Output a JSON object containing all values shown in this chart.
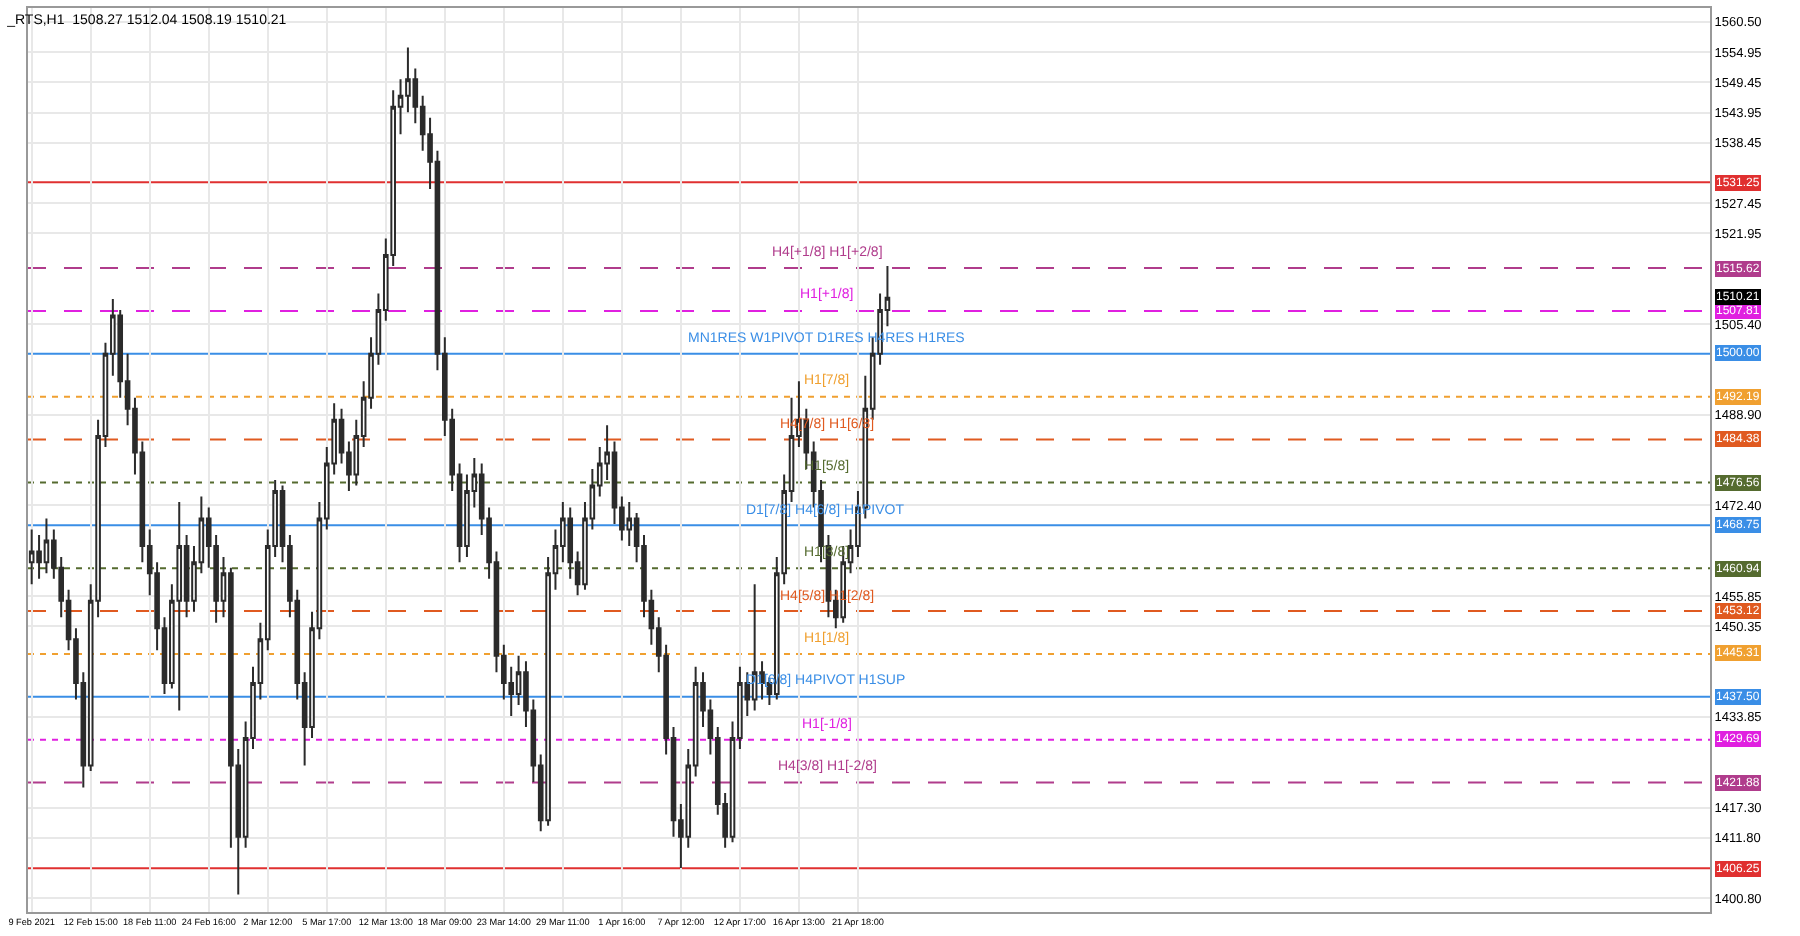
{
  "chart_data": {
    "type": "candlestick",
    "title": "_RTS,H1  1508.27 1512.04 1508.19 1510.21",
    "categories": [
      "9 Feb 2021",
      null,
      null,
      null,
      null,
      null,
      null,
      null,
      "12 Feb 15:00",
      null,
      null,
      null,
      null,
      null,
      null,
      null,
      "18 Feb 11:00",
      null,
      null,
      null,
      null,
      null,
      null,
      null,
      "24 Feb 16:00",
      null,
      null,
      null,
      null,
      null,
      null,
      null,
      "2 Mar 12:00",
      null,
      null,
      null,
      null,
      null,
      null,
      null,
      "5 Mar 17:00",
      null,
      null,
      null,
      null,
      null,
      null,
      null,
      "12 Mar 13:00",
      null,
      null,
      null,
      null,
      null,
      null,
      null,
      "18 Mar 09:00",
      null,
      null,
      null,
      null,
      null,
      null,
      null,
      "23 Mar 14:00",
      null,
      null,
      null,
      null,
      null,
      null,
      null,
      "29 Mar 11:00",
      null,
      null,
      null,
      null,
      null,
      null,
      null,
      "1 Apr 16:00",
      null,
      null,
      null,
      null,
      null,
      null,
      null,
      "7 Apr 12:00",
      null,
      null,
      null,
      null,
      null,
      null,
      null,
      "12 Apr 17:00",
      null,
      null,
      null,
      null,
      null,
      null,
      null,
      "16 Apr 13:00",
      null,
      null,
      null,
      null,
      null,
      null,
      null,
      "21 Apr 18:00",
      null,
      null,
      null,
      null,
      null,
      null,
      null,
      null,
      null,
      null,
      null,
      null,
      null,
      null,
      null,
      null,
      null,
      null,
      null,
      null,
      null,
      null,
      null,
      null,
      null,
      null,
      null,
      null,
      null,
      null,
      null,
      null,
      null,
      null,
      null,
      null,
      null,
      null,
      null,
      null,
      null,
      null,
      null,
      null,
      null,
      null,
      null,
      null,
      null,
      null,
      null,
      null,
      null,
      null,
      null,
      null,
      null,
      null,
      null,
      null,
      null,
      null,
      null,
      null,
      null,
      null,
      null,
      null,
      null,
      null,
      null,
      null,
      null,
      null,
      null,
      null,
      null,
      null,
      null,
      null,
      null,
      null,
      null,
      null,
      null,
      null,
      null,
      null,
      null,
      null,
      null,
      null,
      null,
      null,
      null,
      null,
      null,
      null,
      null,
      null,
      null,
      null,
      null,
      null,
      null,
      null,
      null,
      null,
      null,
      null,
      null,
      null,
      null,
      null,
      null
    ],
    "series": [
      {
        "color": "#2b2b2b",
        "ohlc": [
          [
            1462,
            1468,
            1458,
            1464
          ],
          [
            1464,
            1467,
            1459,
            1462
          ],
          [
            1462,
            1470,
            1460,
            1466
          ],
          [
            1466,
            1468,
            1459,
            1461
          ],
          [
            1461,
            1463,
            1452,
            1455
          ],
          [
            1455,
            1457,
            1446,
            1448
          ],
          [
            1448,
            1450,
            1437,
            1440
          ],
          [
            1440,
            1442,
            1421,
            1425
          ],
          [
            1425,
            1458,
            1424,
            1455
          ],
          [
            1455,
            1488,
            1452,
            1485
          ],
          [
            1485,
            1502,
            1483,
            1500
          ],
          [
            1500,
            1510,
            1496,
            1507
          ],
          [
            1507,
            1508,
            1492,
            1495
          ],
          [
            1495,
            1500,
            1487,
            1490
          ],
          [
            1490,
            1492,
            1478,
            1482
          ],
          [
            1482,
            1484,
            1462,
            1465
          ],
          [
            1465,
            1468,
            1456,
            1460
          ],
          [
            1460,
            1462,
            1446,
            1450
          ],
          [
            1450,
            1452,
            1438,
            1440
          ],
          [
            1440,
            1458,
            1439,
            1455
          ],
          [
            1455,
            1473,
            1435,
            1465
          ],
          [
            1465,
            1467,
            1452,
            1455
          ],
          [
            1455,
            1465,
            1453,
            1462
          ],
          [
            1462,
            1474,
            1460,
            1470
          ],
          [
            1470,
            1472,
            1461,
            1465
          ],
          [
            1465,
            1467,
            1451,
            1455
          ],
          [
            1455,
            1463,
            1452,
            1460
          ],
          [
            1460,
            1461,
            1410,
            1425
          ],
          [
            1425,
            1428,
            1401.5,
            1412
          ],
          [
            1412,
            1433,
            1410,
            1430
          ],
          [
            1430,
            1443,
            1428,
            1440
          ],
          [
            1440,
            1451,
            1437,
            1448
          ],
          [
            1448,
            1468,
            1446,
            1465
          ],
          [
            1465,
            1477,
            1463,
            1475
          ],
          [
            1475,
            1476,
            1462,
            1465
          ],
          [
            1465,
            1467,
            1452,
            1455
          ],
          [
            1455,
            1457,
            1437,
            1440
          ],
          [
            1440,
            1442,
            1425,
            1432
          ],
          [
            1432,
            1453,
            1430,
            1450
          ],
          [
            1450,
            1473,
            1448,
            1470
          ],
          [
            1470,
            1483,
            1468,
            1480
          ],
          [
            1480,
            1491,
            1478,
            1488
          ],
          [
            1488,
            1490,
            1480,
            1482
          ],
          [
            1482,
            1484,
            1475,
            1478
          ],
          [
            1478,
            1488,
            1476,
            1485
          ],
          [
            1485,
            1495,
            1483,
            1492
          ],
          [
            1492,
            1503,
            1490,
            1500
          ],
          [
            1500,
            1511,
            1498,
            1508
          ],
          [
            1508,
            1521,
            1506,
            1518
          ],
          [
            1518,
            1548,
            1516,
            1545
          ],
          [
            1545,
            1550,
            1540,
            1547
          ],
          [
            1547,
            1555.8,
            1544,
            1550
          ],
          [
            1550,
            1552,
            1542,
            1545
          ],
          [
            1545,
            1547,
            1537,
            1540
          ],
          [
            1540,
            1543,
            1530,
            1535
          ],
          [
            1535,
            1537,
            1497,
            1500
          ],
          [
            1500,
            1503,
            1485,
            1488
          ],
          [
            1488,
            1490,
            1475,
            1478
          ],
          [
            1478,
            1480,
            1462,
            1465
          ],
          [
            1465,
            1478,
            1463,
            1475
          ],
          [
            1475,
            1481,
            1472,
            1478
          ],
          [
            1478,
            1480,
            1467,
            1470
          ],
          [
            1470,
            1472,
            1459,
            1462
          ],
          [
            1462,
            1464,
            1442,
            1445
          ],
          [
            1445,
            1447,
            1437,
            1440
          ],
          [
            1440,
            1443,
            1434,
            1438
          ],
          [
            1438,
            1445,
            1436,
            1442
          ],
          [
            1442,
            1444,
            1432,
            1435
          ],
          [
            1435,
            1437,
            1422,
            1425
          ],
          [
            1425,
            1427,
            1413,
            1415
          ],
          [
            1415,
            1463,
            1414,
            1460
          ],
          [
            1460,
            1468,
            1457,
            1465
          ],
          [
            1465,
            1473,
            1462,
            1470
          ],
          [
            1470,
            1472,
            1459,
            1462
          ],
          [
            1462,
            1464,
            1456,
            1458
          ],
          [
            1458,
            1473,
            1457,
            1470
          ],
          [
            1470,
            1479,
            1468,
            1476
          ],
          [
            1476,
            1483,
            1474,
            1480
          ],
          [
            1480,
            1487,
            1477,
            1482
          ],
          [
            1482,
            1484,
            1469,
            1472
          ],
          [
            1472,
            1474,
            1466,
            1468
          ],
          [
            1468,
            1473,
            1465,
            1470
          ],
          [
            1470,
            1471,
            1462,
            1465
          ],
          [
            1465,
            1467,
            1452,
            1455
          ],
          [
            1455,
            1457,
            1447,
            1450
          ],
          [
            1450,
            1452,
            1442,
            1445
          ],
          [
            1445,
            1447,
            1427,
            1430
          ],
          [
            1430,
            1432,
            1412,
            1415
          ],
          [
            1415,
            1418,
            1406.3,
            1412
          ],
          [
            1412,
            1428,
            1410,
            1425
          ],
          [
            1425,
            1443,
            1423,
            1440
          ],
          [
            1440,
            1442,
            1432,
            1435
          ],
          [
            1435,
            1437,
            1427,
            1430
          ],
          [
            1430,
            1432,
            1416,
            1418
          ],
          [
            1418,
            1420,
            1410,
            1412
          ],
          [
            1412,
            1433,
            1411,
            1430
          ],
          [
            1430,
            1443,
            1428,
            1440
          ],
          [
            1440,
            1442,
            1434,
            1437
          ],
          [
            1437,
            1458,
            1435,
            1442
          ],
          [
            1442,
            1444,
            1437,
            1440
          ],
          [
            1440,
            1441,
            1436,
            1438
          ],
          [
            1438,
            1463,
            1437,
            1460
          ],
          [
            1460,
            1478,
            1458,
            1475
          ],
          [
            1475,
            1492,
            1473,
            1485
          ],
          [
            1485,
            1495,
            1483,
            1488
          ],
          [
            1488,
            1490,
            1479,
            1482
          ],
          [
            1482,
            1484,
            1472,
            1475
          ],
          [
            1475,
            1477,
            1462,
            1465
          ],
          [
            1465,
            1467,
            1452,
            1455
          ],
          [
            1455,
            1457,
            1450,
            1452
          ],
          [
            1452,
            1465,
            1451,
            1462
          ],
          [
            1462,
            1468,
            1460,
            1465
          ],
          [
            1465,
            1475,
            1463,
            1472
          ],
          [
            1472,
            1496,
            1470,
            1490
          ],
          [
            1490,
            1503,
            1488,
            1500
          ],
          [
            1500,
            1511,
            1498,
            1508
          ],
          [
            1508,
            1516,
            1505,
            1510.21
          ],
          null,
          null,
          null,
          null,
          null,
          null,
          null,
          null,
          null,
          null,
          null,
          null,
          null,
          null,
          null,
          null,
          null,
          null,
          null,
          null,
          null,
          null,
          null,
          null,
          null,
          null,
          null,
          null,
          null,
          null,
          null,
          null,
          null,
          null,
          null,
          null,
          null,
          null,
          null,
          null,
          null,
          null,
          null,
          null,
          null,
          null,
          null,
          null,
          null,
          null,
          null,
          null,
          null,
          null,
          null,
          null,
          null,
          null,
          null,
          null,
          null,
          null,
          null,
          null,
          null,
          null,
          null,
          null,
          null,
          null,
          null,
          null,
          null,
          null,
          null,
          null,
          null,
          null,
          null,
          null,
          null,
          null,
          null,
          null,
          null,
          null,
          null,
          null,
          null,
          null,
          null,
          null,
          null,
          null,
          null,
          null,
          null,
          null,
          null,
          null,
          null,
          null,
          null,
          null,
          null,
          null,
          null,
          null,
          null,
          null,
          null
        ]
      }
    ],
    "ylim": [
      1398.3,
      1563.0
    ],
    "yticks": [
      {
        "value": 1560.5,
        "label": "1560.50"
      },
      {
        "value": 1554.95,
        "label": "1554.95"
      },
      {
        "value": 1549.45,
        "label": "1549.45"
      },
      {
        "value": 1543.95,
        "label": "1543.95"
      },
      {
        "value": 1538.45,
        "label": "1538.45"
      },
      {
        "value": 1527.45,
        "label": "1527.45"
      },
      {
        "value": 1521.95,
        "label": "1521.95"
      },
      {
        "value": 1505.4,
        "label": "1505.40"
      },
      {
        "value": 1488.9,
        "label": "1488.90"
      },
      {
        "value": 1472.4,
        "label": "1472.40"
      },
      {
        "value": 1455.85,
        "label": "1455.85"
      },
      {
        "value": 1450.35,
        "label": "1450.35"
      },
      {
        "value": 1433.85,
        "label": "1433.85"
      },
      {
        "value": 1417.3,
        "label": "1417.30"
      },
      {
        "value": 1411.8,
        "label": "1411.80"
      },
      {
        "value": 1400.8,
        "label": "1400.80"
      }
    ],
    "grid": true,
    "ref_lines": [
      {
        "axis": "y",
        "value": 1531.25,
        "label": "1531.25",
        "color": "#e03030",
        "line_style": "solid"
      },
      {
        "axis": "y",
        "value": 1515.62,
        "label": "1515.62",
        "color": "#b03c8c",
        "line_style": "dashed"
      },
      {
        "axis": "y",
        "value": 1507.81,
        "label": "1507.81",
        "color": "#e020e0",
        "line_style": "dashed"
      },
      {
        "axis": "y",
        "value": 1500.0,
        "label": "1500.00",
        "color": "#3a8ee6",
        "line_style": "solid"
      },
      {
        "axis": "y",
        "value": 1492.19,
        "label": "1492.19",
        "color": "#f0a030",
        "line_style": "dotted"
      },
      {
        "axis": "y",
        "value": 1484.38,
        "label": "1484.38",
        "color": "#e05a20",
        "line_style": "dashed"
      },
      {
        "axis": "y",
        "value": 1476.56,
        "label": "1476.56",
        "color": "#556b2f",
        "line_style": "dotted"
      },
      {
        "axis": "y",
        "value": 1468.75,
        "label": "1468.75",
        "color": "#3a8ee6",
        "line_style": "solid"
      },
      {
        "axis": "y",
        "value": 1460.94,
        "label": "1460.94",
        "color": "#556b2f",
        "line_style": "dotted"
      },
      {
        "axis": "y",
        "value": 1453.12,
        "label": "1453.12",
        "color": "#e05a20",
        "line_style": "dashed"
      },
      {
        "axis": "y",
        "value": 1445.31,
        "label": "1445.31",
        "color": "#f0a030",
        "line_style": "dotted"
      },
      {
        "axis": "y",
        "value": 1437.5,
        "label": "1437.50",
        "color": "#3a8ee6",
        "line_style": "solid"
      },
      {
        "axis": "y",
        "value": 1429.69,
        "label": "1429.69",
        "color": "#e020e0",
        "line_style": "dotted"
      },
      {
        "axis": "y",
        "value": 1421.88,
        "label": "1421.88",
        "color": "#b03c8c",
        "line_style": "dashed"
      },
      {
        "axis": "y",
        "value": 1406.25,
        "label": "1406.25",
        "color": "#e03030",
        "line_style": "solid"
      }
    ],
    "annotations": [
      {
        "text": "1510.21",
        "y": 1510.21
      },
      {
        "text": "H4[+1/8] H1[+2/8]",
        "y": 1515.62
      },
      {
        "text": "H1[+1/8]",
        "y": 1507.81
      },
      {
        "text": "MN1RES W1PIVOT D1RES H4RES H1RES",
        "y": 1500.0
      },
      {
        "text": "H1[7/8]",
        "y": 1492.19
      },
      {
        "text": "H4[7/8] H1[6/8]",
        "y": 1484.38
      },
      {
        "text": "H1[5/8]",
        "y": 1476.56
      },
      {
        "text": "D1[7/8] H4[6/8] H1PIVOT",
        "y": 1468.75
      },
      {
        "text": "H1[3/8]",
        "y": 1460.94
      },
      {
        "text": "H4[5/8] H1[2/8]",
        "y": 1453.12
      },
      {
        "text": "H1[1/8]",
        "y": 1445.31
      },
      {
        "text": "D1[6/8] H4PIVOT H1SUP",
        "y": 1437.5
      },
      {
        "text": "H1[-1/8]",
        "y": 1429.69
      },
      {
        "text": "H4[3/8] H1[-2/8]",
        "y": 1421.88
      }
    ]
  }
}
